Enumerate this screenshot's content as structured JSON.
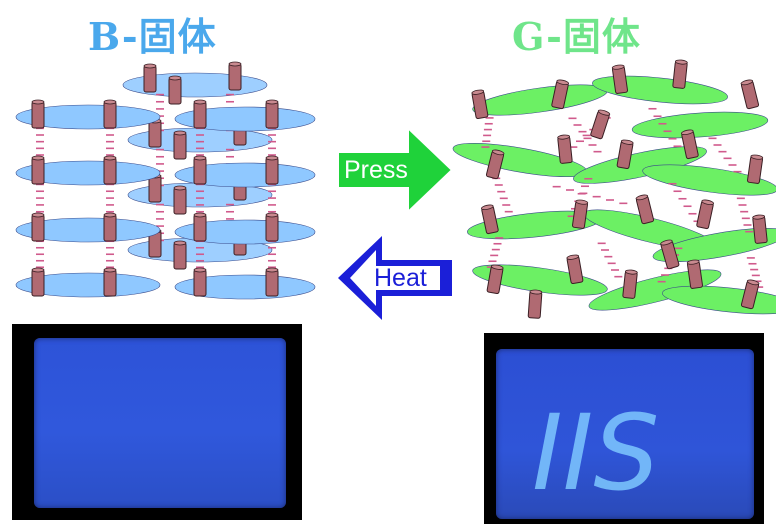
{
  "left_title": "B-固体",
  "right_title": "G-固体",
  "press_label": "Press",
  "heat_label": "Heat",
  "written_text": "IIS",
  "colors": {
    "blue_title": "#4aa8ec",
    "green_title": "#6fe58a",
    "blue_disc": "#8fc8ff",
    "green_disc": "#6cf064",
    "pillar": "#b06a72",
    "link": "#d05a8c",
    "press_arrow": "#1fd23a",
    "heat_arrow": "#1b1fd8",
    "screen": "#2a4fd0"
  }
}
